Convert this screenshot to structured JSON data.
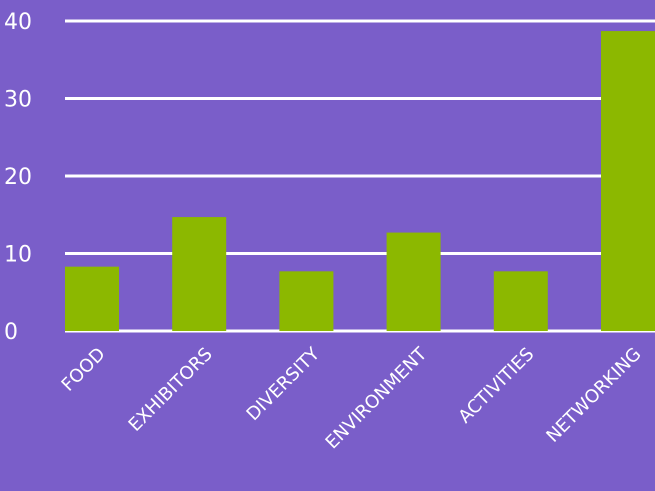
{
  "chart_data": {
    "type": "bar",
    "categories": [
      "FOOD",
      "EXHIBITORS",
      "DIVERSITY",
      "ENVIRONMENT",
      "ACTIVITIES",
      "NETWORKING"
    ],
    "values": [
      8.3,
      14.7,
      7.7,
      12.7,
      7.7,
      38.7
    ],
    "title": "",
    "xlabel": "",
    "ylabel": "",
    "ylim": [
      0,
      40
    ],
    "yticks": [
      0,
      10,
      20,
      30,
      40
    ],
    "grid": true,
    "legend": "none",
    "colors": {
      "background": "#7a5ec9",
      "bar": "#8cb800",
      "grid": "#ffffff",
      "text": "#ffffff"
    }
  }
}
